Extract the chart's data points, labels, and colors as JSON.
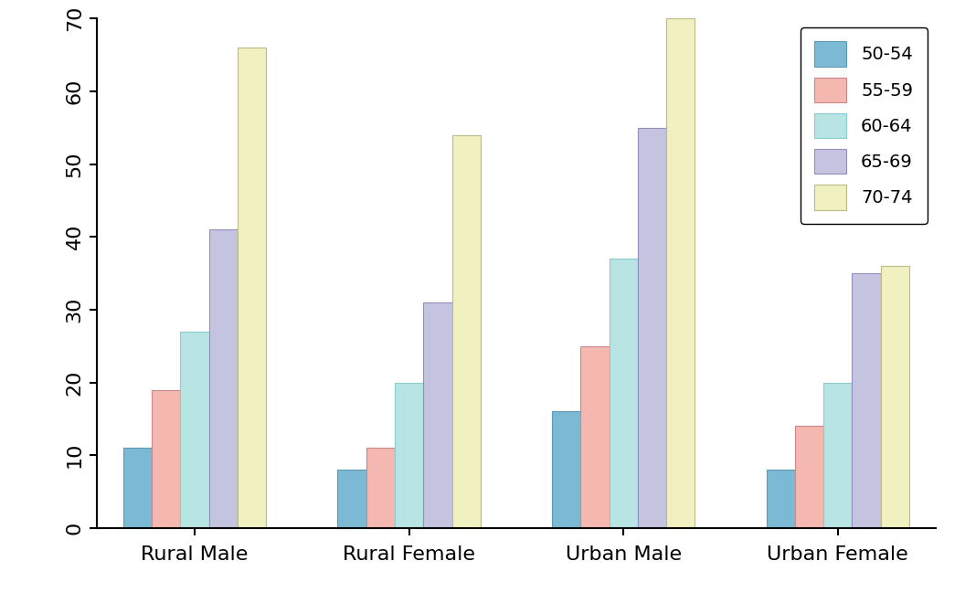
{
  "categories": [
    "Rural Male",
    "Rural Female",
    "Urban Male",
    "Urban Female"
  ],
  "series": {
    "50-54": [
      11,
      8,
      16,
      8
    ],
    "55-59": [
      19,
      11,
      25,
      14
    ],
    "60-64": [
      27,
      20,
      37,
      20
    ],
    "65-69": [
      41,
      31,
      55,
      35
    ],
    "70-74": [
      66,
      54,
      70,
      36
    ]
  },
  "series_order": [
    "50-54",
    "55-59",
    "60-64",
    "65-69",
    "70-74"
  ],
  "bar_colors": {
    "50-54": "#7cb9d4",
    "55-59": "#f4b8b0",
    "60-64": "#b8e4e4",
    "65-69": "#c4c4e0",
    "70-74": "#f0f0c0"
  },
  "bar_edge_colors": {
    "50-54": "#5a9ab5",
    "55-59": "#cc8888",
    "60-64": "#88cccc",
    "65-69": "#9090bb",
    "70-74": "#bbbb88"
  },
  "ylim": [
    0,
    70
  ],
  "yticks": [
    0,
    10,
    20,
    30,
    40,
    50,
    60,
    70
  ],
  "background_color": "#ffffff",
  "bar_width": 0.16,
  "legend_fontsize": 14,
  "tick_fontsize": 16,
  "label_fontsize": 16
}
